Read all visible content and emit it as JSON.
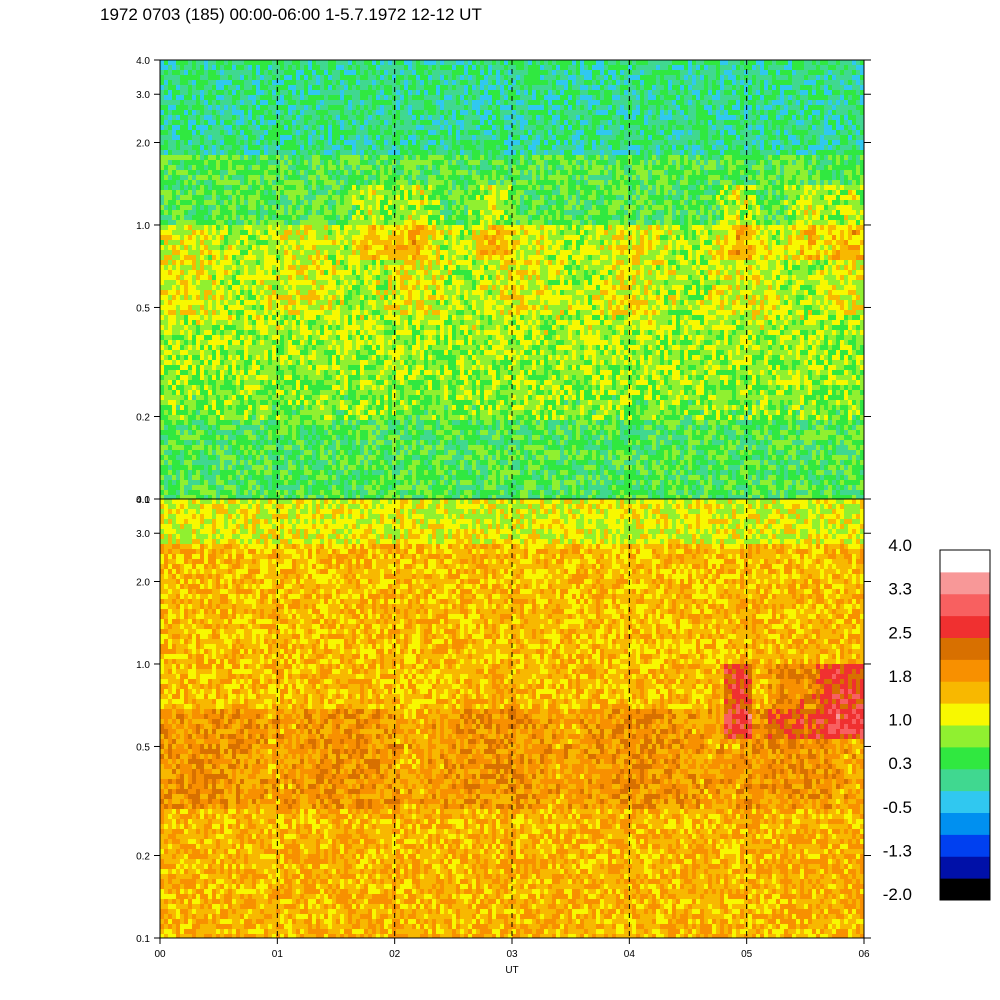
{
  "title": "1972 0703 (185) 00:00-06:00 1-5.7.1972  12-12 UT",
  "chart_data": [
    {
      "type": "heatmap",
      "panel": "upper",
      "x_range": [
        "00",
        "06"
      ],
      "ylim": [
        0.1,
        4.0
      ],
      "yscale": "log",
      "y_ticks": [
        "4.0",
        "3.0",
        "2.0",
        "1.0",
        "0.5",
        "0.2",
        "0.1"
      ],
      "dominant_levels": "green to yellow (~0.3 to 1.0), blue near top, orange patches 0.7-1.2",
      "vertical_dashed_lines_at": [
        "01",
        "02",
        "03",
        "04",
        "05"
      ]
    },
    {
      "type": "heatmap",
      "panel": "lower",
      "x_range": [
        "00",
        "06"
      ],
      "ylim": [
        0.1,
        4.0
      ],
      "yscale": "log",
      "y_ticks": [
        "4.0",
        "3.0",
        "2.0",
        "1.0",
        "0.5",
        "0.2",
        "0.1"
      ],
      "xlabel": "UT",
      "x_ticks": [
        "00",
        "01",
        "02",
        "03",
        "04",
        "05",
        "06"
      ],
      "dominant_levels": "orange (~1.8), red patches (~2.5) near 05-06 at 0.5-1.0",
      "vertical_dashed_lines_at": [
        "01",
        "02",
        "03",
        "04",
        "05"
      ]
    }
  ],
  "colorbar": {
    "labels": [
      "4.0",
      "3.3",
      "2.5",
      "1.8",
      "1.0",
      "0.3",
      "-0.5",
      "-1.3",
      "-2.0"
    ],
    "colors": [
      "#000000",
      "#0010a8",
      "#0040f0",
      "#0090f0",
      "#30c8f0",
      "#40d890",
      "#30e840",
      "#90f030",
      "#f8f800",
      "#f8b800",
      "#f89000",
      "#d87000",
      "#f03030",
      "#f86060",
      "#f89898",
      "#ffffff"
    ]
  }
}
